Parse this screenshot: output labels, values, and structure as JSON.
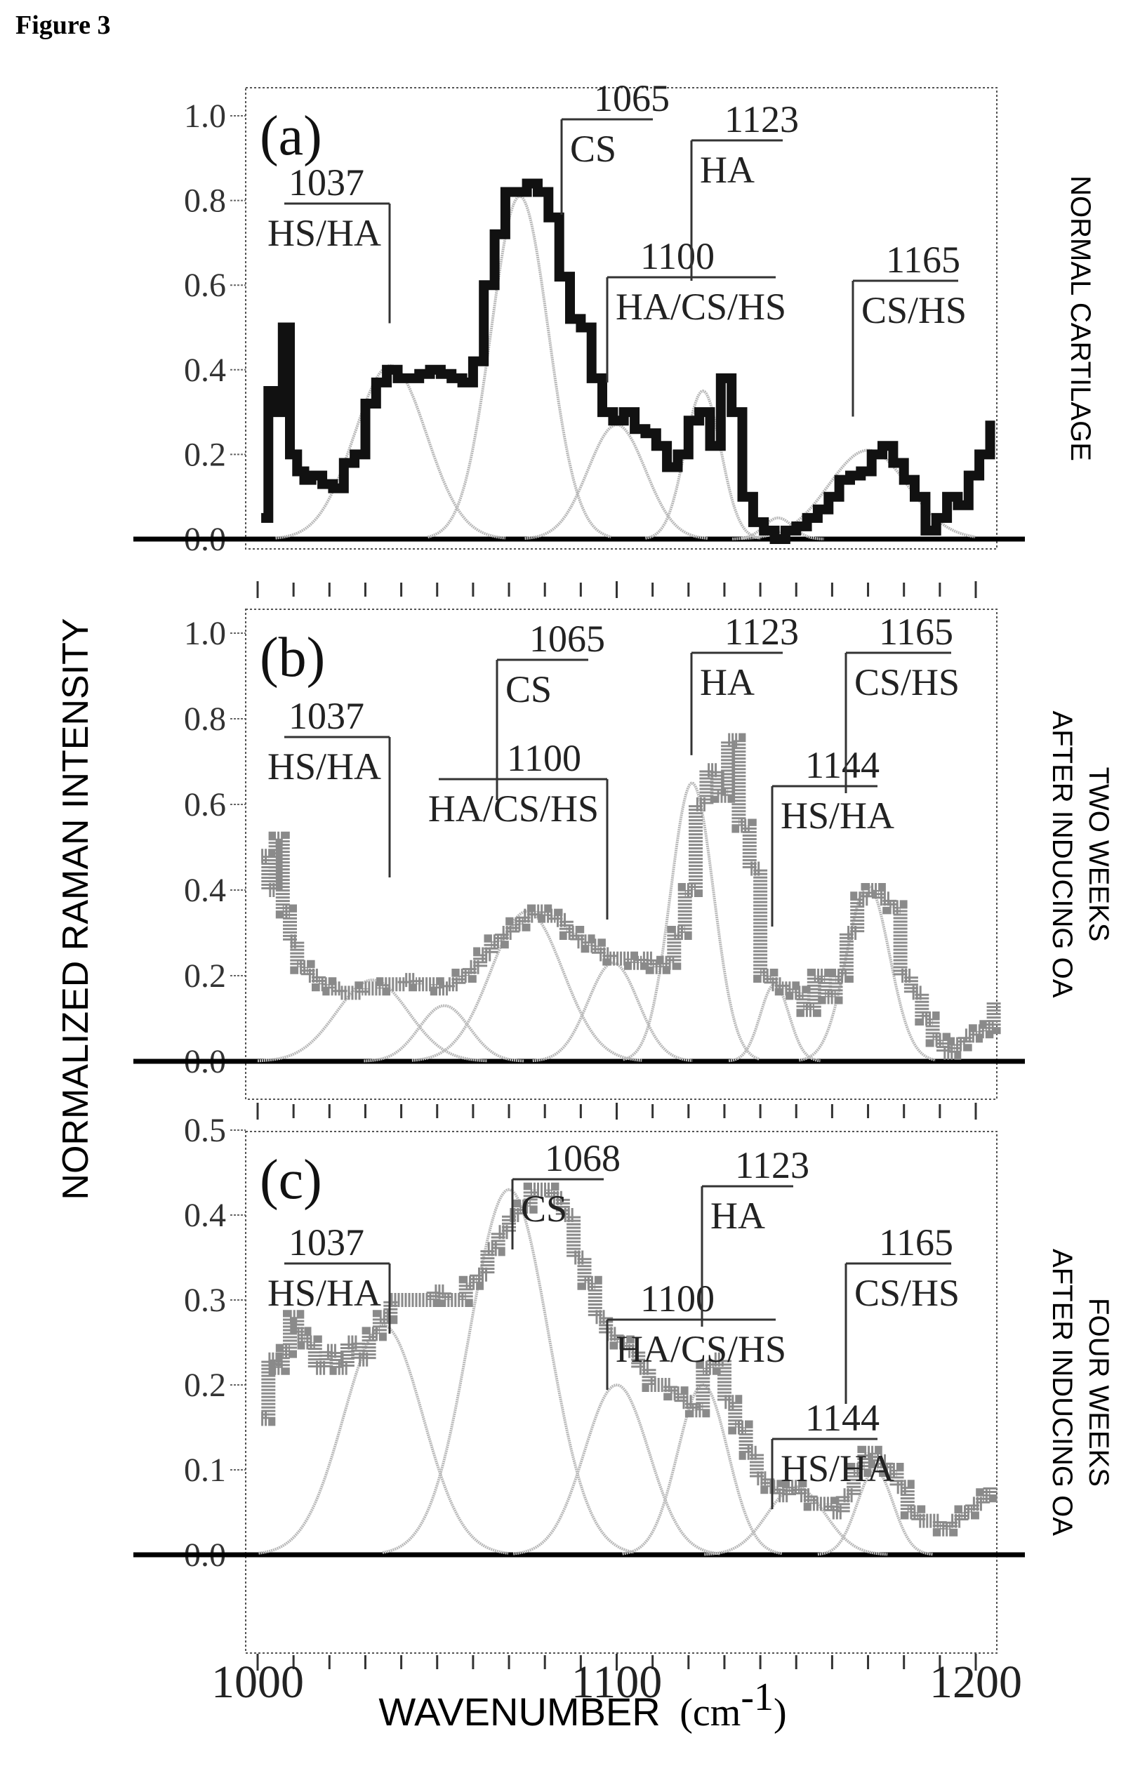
{
  "figure_label": "Figure 3",
  "chart_data": {
    "type": "line",
    "title": "",
    "ylabel": "NORMALIZED RAMAN INTENSITY",
    "xlabel": "WAVENUMBER",
    "xlabel_unit": "(cm",
    "xlabel_unit_sup": "-1",
    "xlabel_unit_close": ")",
    "xlim": [
      1000,
      1200
    ],
    "xticks": [
      1000,
      1100,
      1200
    ],
    "grid": false,
    "legend": "none",
    "colors": {
      "spectrum_a": "#111111",
      "spectrum_bc": "#8a8a8a",
      "fit": "#b8b8b8",
      "baseline": "#000000"
    },
    "panels": [
      {
        "id": "a",
        "tag": "(a)",
        "side_label": [
          "NORMAL CARTILAGE"
        ],
        "ylim": [
          0,
          1.0
        ],
        "yticks": [
          "0.0",
          "0.2",
          "0.4",
          "0.6",
          "0.8",
          "1.0"
        ],
        "ytick_values": [
          0,
          0.2,
          0.4,
          0.6,
          0.8,
          1.0
        ],
        "annotations": [
          {
            "wavenumber": "1037",
            "species": "HS/HA",
            "peak": 1037
          },
          {
            "wavenumber": "1065",
            "species": "CS",
            "peak": 1068
          },
          {
            "wavenumber": "1100",
            "species": "HA/CS/HS",
            "peak": 1100
          },
          {
            "wavenumber": "1123",
            "species": "HA",
            "peak": 1123
          },
          {
            "wavenumber": "1165",
            "species": "CS/HS",
            "peak": 1165
          }
        ],
        "fit_peaks": [
          {
            "center": 1037,
            "height": 0.41,
            "width": 10
          },
          {
            "center": 1073,
            "height": 0.81,
            "width": 8
          },
          {
            "center": 1100,
            "height": 0.27,
            "width": 8
          },
          {
            "center": 1124,
            "height": 0.35,
            "width": 5
          },
          {
            "center": 1145,
            "height": 0.05,
            "width": 4
          },
          {
            "center": 1170,
            "height": 0.21,
            "width": 11
          }
        ],
        "series": [
          {
            "x": [
              1001,
              1003,
              1005,
              1007,
              1009,
              1011,
              1013,
              1015,
              1018,
              1021,
              1024,
              1027,
              1030,
              1033,
              1036,
              1039,
              1042,
              1045,
              1048,
              1051,
              1054,
              1057,
              1060,
              1063,
              1066,
              1069,
              1072,
              1075,
              1078,
              1081,
              1084,
              1087,
              1090,
              1093,
              1096,
              1099,
              1102,
              1105,
              1108,
              1111,
              1114,
              1117,
              1120,
              1123,
              1126,
              1129,
              1132,
              1135,
              1138,
              1141,
              1144,
              1147,
              1150,
              1153,
              1156,
              1159,
              1162,
              1165,
              1168,
              1171,
              1174,
              1177,
              1180,
              1183,
              1186,
              1189,
              1192,
              1195,
              1198,
              1201,
              1204
            ],
            "y": [
              0.05,
              0.35,
              0.3,
              0.5,
              0.2,
              0.16,
              0.14,
              0.15,
              0.13,
              0.12,
              0.18,
              0.2,
              0.32,
              0.37,
              0.4,
              0.38,
              0.38,
              0.39,
              0.4,
              0.39,
              0.38,
              0.37,
              0.42,
              0.6,
              0.72,
              0.82,
              0.82,
              0.84,
              0.82,
              0.76,
              0.62,
              0.52,
              0.5,
              0.38,
              0.3,
              0.28,
              0.3,
              0.26,
              0.25,
              0.22,
              0.17,
              0.2,
              0.28,
              0.3,
              0.22,
              0.38,
              0.3,
              0.1,
              0.04,
              0.02,
              0.0,
              0.02,
              0.03,
              0.05,
              0.07,
              0.1,
              0.14,
              0.15,
              0.16,
              0.2,
              0.22,
              0.18,
              0.14,
              0.1,
              0.02,
              0.05,
              0.1,
              0.08,
              0.15,
              0.2,
              0.28
            ]
          }
        ]
      },
      {
        "id": "b",
        "tag": "(b)",
        "side_label": [
          "TWO WEEKS",
          "AFTER INDUCING OA"
        ],
        "ylim": [
          0,
          1.0
        ],
        "yticks": [
          "0.0",
          "0.2",
          "0.4",
          "0.6",
          "0.8",
          "1.0"
        ],
        "ytick_values": [
          0,
          0.2,
          0.4,
          0.6,
          0.8,
          1.0
        ],
        "annotations": [
          {
            "wavenumber": "1037",
            "species": "HS/HA",
            "peak": 1037
          },
          {
            "wavenumber": "1065",
            "species": "CS",
            "peak": 1068
          },
          {
            "wavenumber": "1100",
            "species": "HA/CS/HS",
            "peak": 1100
          },
          {
            "wavenumber": "1123",
            "species": "HA",
            "peak": 1123
          },
          {
            "wavenumber": "1144",
            "species": "HS/HA",
            "peak": 1144
          },
          {
            "wavenumber": "1165",
            "species": "CS/HS",
            "peak": 1165
          }
        ],
        "fit_peaks": [
          {
            "center": 1032,
            "height": 0.19,
            "width": 10
          },
          {
            "center": 1052,
            "height": 0.13,
            "width": 7
          },
          {
            "center": 1075,
            "height": 0.35,
            "width": 10
          },
          {
            "center": 1099,
            "height": 0.23,
            "width": 7
          },
          {
            "center": 1121,
            "height": 0.65,
            "width": 6
          },
          {
            "center": 1144,
            "height": 0.18,
            "width": 4
          },
          {
            "center": 1170,
            "height": 0.41,
            "width": 6
          }
        ],
        "series": [
          {
            "x": [
              1001,
              1003,
              1005,
              1007,
              1009,
              1011,
              1014,
              1017,
              1020,
              1023,
              1026,
              1029,
              1032,
              1035,
              1038,
              1041,
              1044,
              1047,
              1050,
              1053,
              1056,
              1059,
              1062,
              1065,
              1068,
              1071,
              1074,
              1077,
              1080,
              1083,
              1086,
              1089,
              1092,
              1095,
              1098,
              1101,
              1104,
              1107,
              1110,
              1113,
              1116,
              1119,
              1122,
              1125,
              1128,
              1131,
              1134,
              1137,
              1140,
              1143,
              1146,
              1149,
              1152,
              1155,
              1158,
              1161,
              1164,
              1167,
              1170,
              1173,
              1176,
              1179,
              1182,
              1185,
              1188,
              1191,
              1194,
              1197,
              1200,
              1203,
              1205
            ],
            "y": [
              0.48,
              0.4,
              0.52,
              0.35,
              0.28,
              0.22,
              0.2,
              0.18,
              0.17,
              0.16,
              0.16,
              0.17,
              0.17,
              0.18,
              0.18,
              0.19,
              0.18,
              0.18,
              0.17,
              0.18,
              0.2,
              0.22,
              0.25,
              0.28,
              0.3,
              0.32,
              0.34,
              0.35,
              0.34,
              0.33,
              0.3,
              0.28,
              0.27,
              0.25,
              0.24,
              0.24,
              0.23,
              0.24,
              0.22,
              0.23,
              0.3,
              0.4,
              0.6,
              0.68,
              0.62,
              0.75,
              0.55,
              0.45,
              0.2,
              0.18,
              0.17,
              0.16,
              0.12,
              0.2,
              0.15,
              0.2,
              0.3,
              0.38,
              0.4,
              0.38,
              0.36,
              0.2,
              0.16,
              0.1,
              0.05,
              0.02,
              0.04,
              0.06,
              0.07,
              0.08,
              0.14
            ]
          }
        ]
      },
      {
        "id": "c",
        "tag": "(c)",
        "side_label": [
          "FOUR WEEKS",
          "AFTER INDUCING OA"
        ],
        "ylim": [
          0,
          0.5
        ],
        "yticks": [
          "0.0",
          "0.1",
          "0.2",
          "0.3",
          "0.4",
          "0.5"
        ],
        "ytick_values": [
          0,
          0.1,
          0.2,
          0.3,
          0.4,
          0.5
        ],
        "annotations": [
          {
            "wavenumber": "1037",
            "species": "HS/HA",
            "peak": 1037
          },
          {
            "wavenumber": "1068",
            "species": "CS",
            "peak": 1071
          },
          {
            "wavenumber": "1100",
            "species": "HA/CS/HS",
            "peak": 1100
          },
          {
            "wavenumber": "1123",
            "species": "HA",
            "peak": 1123
          },
          {
            "wavenumber": "1144",
            "species": "HS/HA",
            "peak": 1144
          },
          {
            "wavenumber": "1165",
            "species": "CS/HS",
            "peak": 1165
          }
        ],
        "fit_peaks": [
          {
            "center": 1035,
            "height": 0.27,
            "width": 11
          },
          {
            "center": 1070,
            "height": 0.43,
            "width": 11
          },
          {
            "center": 1100,
            "height": 0.2,
            "width": 9
          },
          {
            "center": 1124,
            "height": 0.2,
            "width": 7
          },
          {
            "center": 1150,
            "height": 0.08,
            "width": 8
          },
          {
            "center": 1172,
            "height": 0.1,
            "width": 5
          }
        ],
        "series": [
          {
            "x": [
              1001,
              1003,
              1005,
              1007,
              1009,
              1011,
              1013,
              1016,
              1019,
              1022,
              1025,
              1028,
              1031,
              1034,
              1037,
              1040,
              1043,
              1046,
              1049,
              1052,
              1055,
              1058,
              1061,
              1064,
              1067,
              1070,
              1073,
              1076,
              1079,
              1082,
              1085,
              1088,
              1091,
              1094,
              1097,
              1100,
              1103,
              1106,
              1109,
              1112,
              1115,
              1118,
              1121,
              1124,
              1127,
              1130,
              1133,
              1136,
              1139,
              1142,
              1145,
              1148,
              1151,
              1154,
              1157,
              1160,
              1163,
              1166,
              1169,
              1172,
              1175,
              1178,
              1181,
              1184,
              1187,
              1190,
              1193,
              1196,
              1199,
              1202,
              1204
            ],
            "y": [
              0.16,
              0.23,
              0.22,
              0.24,
              0.28,
              0.26,
              0.25,
              0.22,
              0.24,
              0.22,
              0.25,
              0.23,
              0.26,
              0.28,
              0.3,
              0.3,
              0.3,
              0.3,
              0.31,
              0.3,
              0.3,
              0.32,
              0.33,
              0.36,
              0.38,
              0.4,
              0.41,
              0.43,
              0.43,
              0.42,
              0.4,
              0.35,
              0.32,
              0.28,
              0.26,
              0.25,
              0.24,
              0.22,
              0.2,
              0.2,
              0.19,
              0.18,
              0.17,
              0.22,
              0.23,
              0.18,
              0.15,
              0.12,
              0.09,
              0.08,
              0.07,
              0.08,
              0.07,
              0.06,
              0.06,
              0.05,
              0.07,
              0.1,
              0.12,
              0.11,
              0.1,
              0.08,
              0.05,
              0.04,
              0.04,
              0.03,
              0.04,
              0.05,
              0.06,
              0.07,
              0.08
            ]
          }
        ]
      }
    ]
  }
}
